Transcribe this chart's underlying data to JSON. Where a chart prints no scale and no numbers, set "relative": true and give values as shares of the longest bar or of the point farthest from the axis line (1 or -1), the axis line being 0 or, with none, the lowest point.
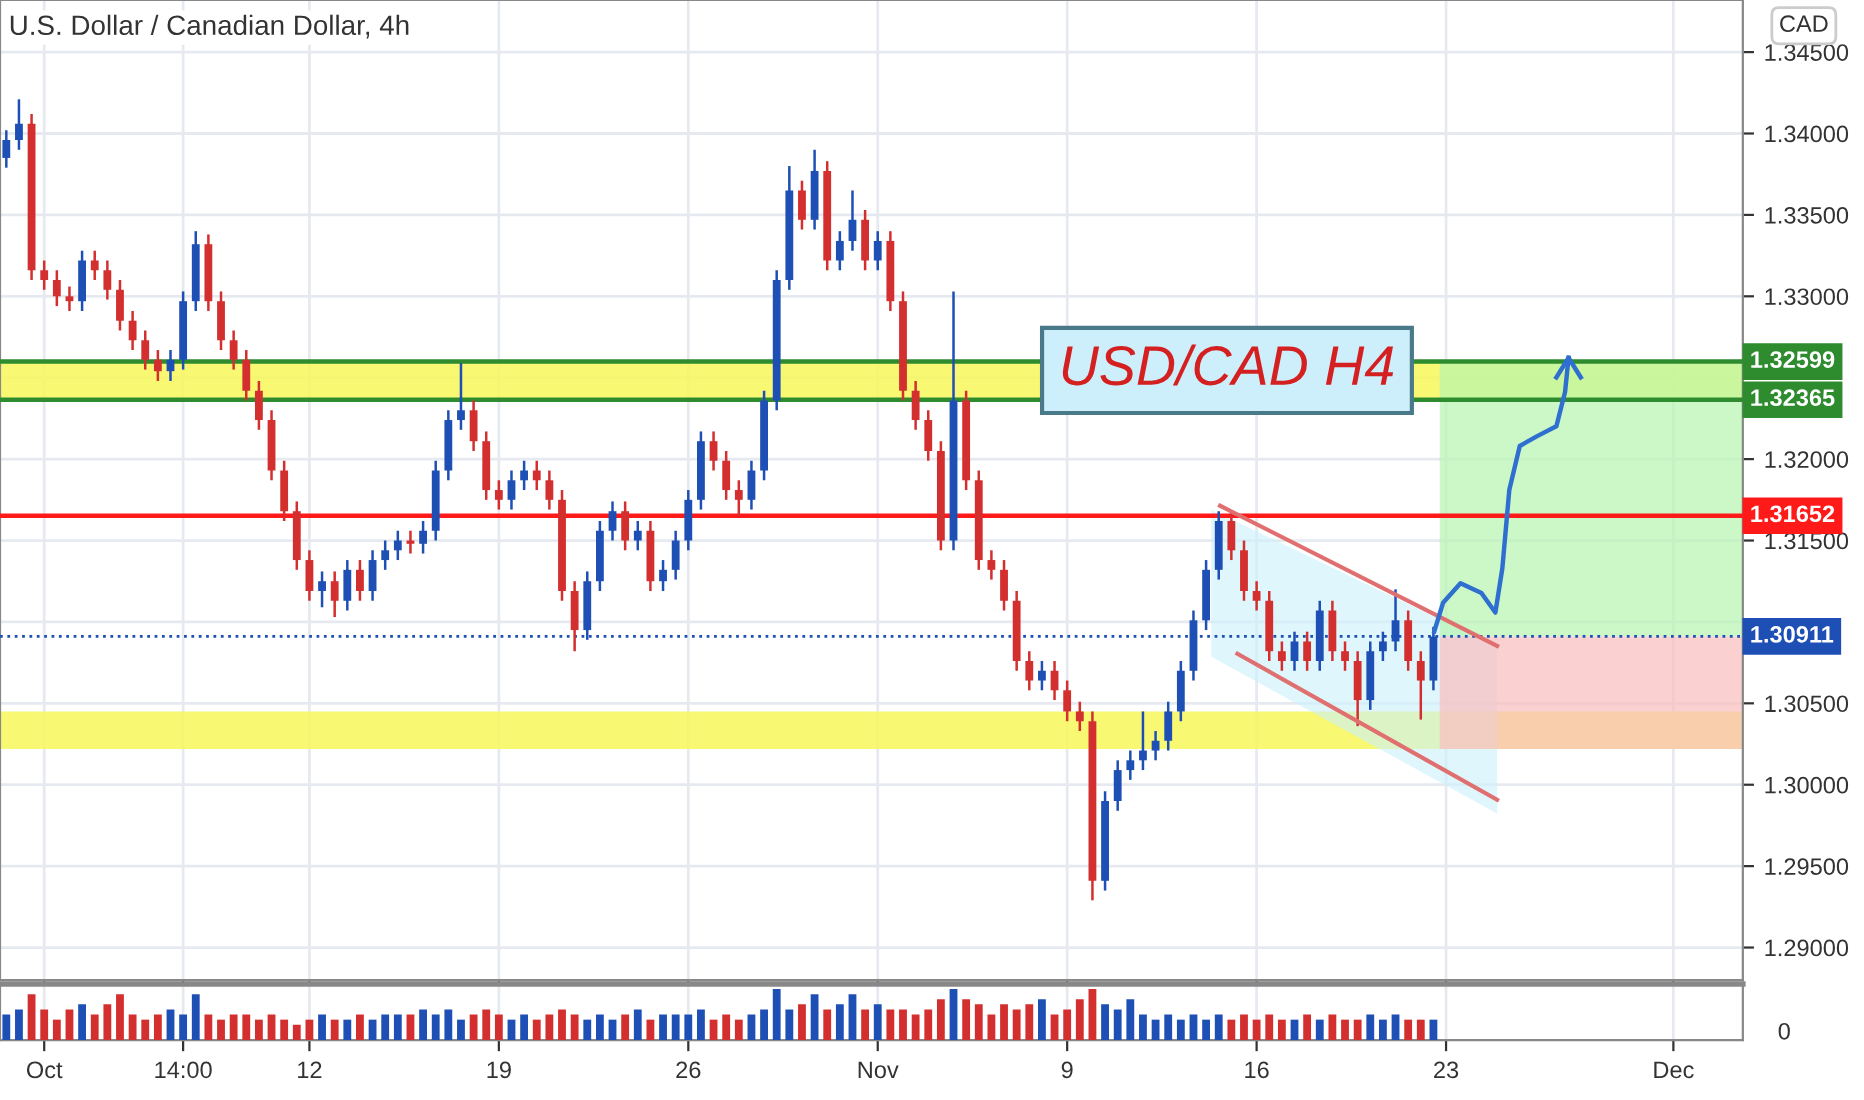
{
  "chart_data": [
    {
      "type": "candlestick",
      "title": "U.S. Dollar / Canadian Dollar, 4h",
      "categories": [
        null,
        null,
        null,
        null,
        null,
        null,
        null,
        null,
        null,
        null,
        null,
        null,
        null,
        null,
        null,
        null,
        null,
        null,
        null,
        null,
        null,
        null,
        null,
        null,
        null,
        null,
        null,
        null,
        null,
        null,
        null,
        null,
        null,
        null,
        null,
        null,
        null,
        null,
        null,
        null,
        null,
        null,
        null,
        null,
        null,
        null,
        null,
        null,
        null,
        null,
        null,
        null,
        null,
        null,
        null,
        null,
        null,
        null,
        null,
        null,
        null,
        null,
        null,
        null,
        null,
        null,
        null,
        null,
        null,
        null,
        null,
        null,
        null,
        null,
        null,
        null,
        null,
        null,
        null,
        null,
        null,
        null,
        null,
        null,
        null,
        null,
        null,
        null,
        null,
        null,
        null,
        null,
        null,
        null,
        null,
        null,
        null,
        null,
        null,
        null,
        null,
        null,
        null,
        null,
        null,
        null,
        null,
        null,
        null,
        null,
        null,
        null,
        null,
        null,
        null,
        null,
        null,
        null,
        null,
        null,
        null,
        null,
        null,
        null,
        null,
        null,
        null,
        null,
        null,
        null,
        null,
        null,
        null,
        null,
        null,
        null,
        null,
        null
      ],
      "ohlc": [
        [
          1.3385,
          1.3402,
          1.3379,
          1.3396
        ],
        [
          1.3396,
          1.3421,
          1.339,
          1.3406
        ],
        [
          1.3406,
          1.3412,
          1.331,
          1.3316
        ],
        [
          1.3316,
          1.3322,
          1.3304,
          1.331
        ],
        [
          1.331,
          1.3316,
          1.3294,
          1.33
        ],
        [
          1.33,
          1.3306,
          1.3291,
          1.3297
        ],
        [
          1.3297,
          1.3328,
          1.3291,
          1.3322
        ],
        [
          1.3322,
          1.3328,
          1.331,
          1.3316
        ],
        [
          1.3316,
          1.3322,
          1.3298,
          1.3304
        ],
        [
          1.3304,
          1.331,
          1.3279,
          1.3285
        ],
        [
          1.3285,
          1.3291,
          1.3267,
          1.3273
        ],
        [
          1.3273,
          1.3279,
          1.3255,
          1.3261
        ],
        [
          1.3261,
          1.3267,
          1.3248,
          1.3254
        ],
        [
          1.3254,
          1.3267,
          1.3248,
          1.3261
        ],
        [
          1.3261,
          1.3303,
          1.3255,
          1.3297
        ],
        [
          1.3297,
          1.334,
          1.3291,
          1.3332
        ],
        [
          1.3332,
          1.3338,
          1.3291,
          1.3297
        ],
        [
          1.3297,
          1.3303,
          1.3267,
          1.3273
        ],
        [
          1.3273,
          1.3279,
          1.3255,
          1.3261
        ],
        [
          1.3261,
          1.3267,
          1.3236,
          1.3242
        ],
        [
          1.3242,
          1.3248,
          1.3218,
          1.3224
        ],
        [
          1.3224,
          1.323,
          1.3187,
          1.3193
        ],
        [
          1.3193,
          1.3199,
          1.3162,
          1.3168
        ],
        [
          1.3168,
          1.3174,
          1.3132,
          1.3138
        ],
        [
          1.3138,
          1.3144,
          1.3113,
          1.3119
        ],
        [
          1.3119,
          1.3131,
          1.3109,
          1.3125
        ],
        [
          1.3125,
          1.3131,
          1.3103,
          1.3113
        ],
        [
          1.3113,
          1.3138,
          1.3107,
          1.3132
        ],
        [
          1.3132,
          1.3138,
          1.3113,
          1.3119
        ],
        [
          1.3119,
          1.3144,
          1.3113,
          1.3138
        ],
        [
          1.3138,
          1.315,
          1.3132,
          1.3144
        ],
        [
          1.3144,
          1.3156,
          1.3138,
          1.315
        ],
        [
          1.315,
          1.3156,
          1.3142,
          1.3148
        ],
        [
          1.3148,
          1.3162,
          1.3142,
          1.3156
        ],
        [
          1.3156,
          1.3199,
          1.315,
          1.3193
        ],
        [
          1.3193,
          1.323,
          1.3187,
          1.3224
        ],
        [
          1.3224,
          1.3259,
          1.3218,
          1.323
        ],
        [
          1.323,
          1.3236,
          1.3205,
          1.3211
        ],
        [
          1.3211,
          1.3217,
          1.3175,
          1.3181
        ],
        [
          1.3181,
          1.3187,
          1.3169,
          1.3175
        ],
        [
          1.3175,
          1.3193,
          1.3169,
          1.3187
        ],
        [
          1.3187,
          1.3199,
          1.3181,
          1.3193
        ],
        [
          1.3193,
          1.3199,
          1.3181,
          1.3187
        ],
        [
          1.3187,
          1.3193,
          1.3169,
          1.3175
        ],
        [
          1.3175,
          1.3181,
          1.3113,
          1.3119
        ],
        [
          1.3119,
          1.3125,
          1.3082,
          1.3095
        ],
        [
          1.3095,
          1.3131,
          1.3089,
          1.3125
        ],
        [
          1.3125,
          1.3162,
          1.3119,
          1.3156
        ],
        [
          1.3156,
          1.3174,
          1.315,
          1.3168
        ],
        [
          1.3168,
          1.3174,
          1.3144,
          1.315
        ],
        [
          1.315,
          1.3162,
          1.3144,
          1.3156
        ],
        [
          1.3156,
          1.3162,
          1.3119,
          1.3125
        ],
        [
          1.3125,
          1.3138,
          1.3119,
          1.3132
        ],
        [
          1.3132,
          1.3156,
          1.3126,
          1.315
        ],
        [
          1.315,
          1.3181,
          1.3144,
          1.3175
        ],
        [
          1.3175,
          1.3217,
          1.3169,
          1.3211
        ],
        [
          1.3211,
          1.3217,
          1.3193,
          1.3199
        ],
        [
          1.3199,
          1.3205,
          1.3175,
          1.3181
        ],
        [
          1.3181,
          1.3187,
          1.3165,
          1.3175
        ],
        [
          1.3175,
          1.3199,
          1.3169,
          1.3193
        ],
        [
          1.3193,
          1.3242,
          1.3187,
          1.3236
        ],
        [
          1.3236,
          1.3316,
          1.323,
          1.331
        ],
        [
          1.331,
          1.338,
          1.3304,
          1.3365
        ],
        [
          1.3365,
          1.3371,
          1.3341,
          1.3347
        ],
        [
          1.3347,
          1.339,
          1.3341,
          1.3377
        ],
        [
          1.3377,
          1.3383,
          1.3316,
          1.3322
        ],
        [
          1.3322,
          1.334,
          1.3316,
          1.3334
        ],
        [
          1.3334,
          1.3365,
          1.3328,
          1.3347
        ],
        [
          1.3347,
          1.3353,
          1.3316,
          1.3322
        ],
        [
          1.3322,
          1.334,
          1.3316,
          1.3334
        ],
        [
          1.3334,
          1.334,
          1.3291,
          1.3297
        ],
        [
          1.3297,
          1.3303,
          1.3236,
          1.3242
        ],
        [
          1.3242,
          1.3248,
          1.3218,
          1.3224
        ],
        [
          1.3224,
          1.323,
          1.3199,
          1.3205
        ],
        [
          1.3205,
          1.3211,
          1.3144,
          1.315
        ],
        [
          1.315,
          1.3303,
          1.3144,
          1.3236
        ],
        [
          1.3236,
          1.3242,
          1.3181,
          1.3187
        ],
        [
          1.3187,
          1.3193,
          1.3132,
          1.3138
        ],
        [
          1.3138,
          1.3144,
          1.3126,
          1.3132
        ],
        [
          1.3132,
          1.3138,
          1.3107,
          1.3113
        ],
        [
          1.3113,
          1.3119,
          1.307,
          1.3076
        ],
        [
          1.3076,
          1.3082,
          1.3058,
          1.3064
        ],
        [
          1.3064,
          1.3076,
          1.3058,
          1.307
        ],
        [
          1.307,
          1.3076,
          1.3052,
          1.3058
        ],
        [
          1.3058,
          1.3064,
          1.3039,
          1.3045
        ],
        [
          1.3045,
          1.3051,
          1.3033,
          1.3039
        ],
        [
          1.3039,
          1.3045,
          1.2929,
          1.2941
        ],
        [
          1.2941,
          1.2996,
          1.2935,
          1.299
        ],
        [
          1.299,
          1.3015,
          1.2984,
          1.3009
        ],
        [
          1.3009,
          1.3021,
          1.3003,
          1.3015
        ],
        [
          1.3015,
          1.3045,
          1.3009,
          1.3021
        ],
        [
          1.3021,
          1.3033,
          1.3015,
          1.3027
        ],
        [
          1.3027,
          1.3051,
          1.3021,
          1.3045
        ],
        [
          1.3045,
          1.3076,
          1.3039,
          1.307
        ],
        [
          1.307,
          1.3107,
          1.3064,
          1.3101
        ],
        [
          1.3101,
          1.3138,
          1.3095,
          1.3132
        ],
        [
          1.3132,
          1.3168,
          1.3126,
          1.3162
        ],
        [
          1.3162,
          1.3168,
          1.3138,
          1.3144
        ],
        [
          1.3144,
          1.315,
          1.3113,
          1.3119
        ],
        [
          1.3119,
          1.3125,
          1.3107,
          1.3113
        ],
        [
          1.3113,
          1.3119,
          1.3076,
          1.3082
        ],
        [
          1.3082,
          1.3088,
          1.307,
          1.3076
        ],
        [
          1.3076,
          1.3094,
          1.307,
          1.3088
        ],
        [
          1.3088,
          1.3094,
          1.307,
          1.3076
        ],
        [
          1.3076,
          1.3113,
          1.307,
          1.3107
        ],
        [
          1.3107,
          1.3113,
          1.3076,
          1.3082
        ],
        [
          1.3082,
          1.3088,
          1.307,
          1.3076
        ],
        [
          1.3076,
          1.3082,
          1.3036,
          1.3052
        ],
        [
          1.3052,
          1.3088,
          1.3046,
          1.3082
        ],
        [
          1.3082,
          1.3094,
          1.3076,
          1.3088
        ],
        [
          1.3088,
          1.312,
          1.3082,
          1.3101
        ],
        [
          1.3101,
          1.3107,
          1.307,
          1.3076
        ],
        [
          1.3076,
          1.3082,
          1.304,
          1.3064
        ],
        [
          1.3064,
          1.3097,
          1.3058,
          1.3091
        ],
        null,
        null,
        null,
        null,
        null,
        null,
        null,
        null,
        null,
        null,
        null,
        null,
        null,
        null,
        null,
        null,
        null,
        null,
        null,
        null,
        null,
        null,
        null,
        null
      ],
      "colors": [
        "#1e4fb4",
        "#1e4fb4",
        "#d32f2f",
        "#d32f2f",
        "#d32f2f",
        "#d32f2f",
        "#1e4fb4",
        "#d32f2f",
        "#d32f2f",
        "#d32f2f",
        "#d32f2f",
        "#d32f2f",
        "#d32f2f",
        "#1e4fb4",
        "#1e4fb4",
        "#1e4fb4",
        "#d32f2f",
        "#d32f2f",
        "#d32f2f",
        "#d32f2f",
        "#d32f2f",
        "#d32f2f",
        "#d32f2f",
        "#d32f2f",
        "#d32f2f",
        "#1e4fb4",
        "#d32f2f",
        "#1e4fb4",
        "#d32f2f",
        "#1e4fb4",
        "#1e4fb4",
        "#1e4fb4",
        "#d32f2f",
        "#1e4fb4",
        "#1e4fb4",
        "#1e4fb4",
        "#1e4fb4",
        "#d32f2f",
        "#d32f2f",
        "#d32f2f",
        "#1e4fb4",
        "#1e4fb4",
        "#d32f2f",
        "#d32f2f",
        "#d32f2f",
        "#d32f2f",
        "#1e4fb4",
        "#1e4fb4",
        "#1e4fb4",
        "#d32f2f",
        "#1e4fb4",
        "#d32f2f",
        "#1e4fb4",
        "#1e4fb4",
        "#1e4fb4",
        "#1e4fb4",
        "#d32f2f",
        "#d32f2f",
        "#d32f2f",
        "#1e4fb4",
        "#1e4fb4",
        "#1e4fb4",
        "#1e4fb4",
        "#d32f2f",
        "#1e4fb4",
        "#d32f2f",
        "#1e4fb4",
        "#1e4fb4",
        "#d32f2f",
        "#1e4fb4",
        "#d32f2f",
        "#d32f2f",
        "#d32f2f",
        "#d32f2f",
        "#d32f2f",
        "#1e4fb4",
        "#d32f2f",
        "#d32f2f",
        "#d32f2f",
        "#d32f2f",
        "#d32f2f",
        "#d32f2f",
        "#1e4fb4",
        "#d32f2f",
        "#d32f2f",
        "#d32f2f",
        "#d32f2f",
        "#1e4fb4",
        "#1e4fb4",
        "#1e4fb4",
        "#1e4fb4",
        "#1e4fb4",
        "#1e4fb4",
        "#1e4fb4",
        "#1e4fb4",
        "#1e4fb4",
        "#1e4fb4",
        "#d32f2f",
        "#d32f2f",
        "#d32f2f",
        "#d32f2f",
        "#d32f2f",
        "#1e4fb4",
        "#d32f2f",
        "#1e4fb4",
        "#d32f2f",
        "#d32f2f",
        "#d32f2f",
        "#1e4fb4",
        "#1e4fb4",
        "#1e4fb4",
        "#d32f2f",
        "#d32f2f",
        "#1e4fb4",
        null,
        null,
        null,
        null,
        null,
        null,
        null,
        null,
        null,
        null,
        null,
        null,
        null,
        null,
        null,
        null,
        null,
        null,
        null,
        null,
        null,
        null,
        null,
        null
      ],
      "ylim": [
        1.288,
        1.3482
      ],
      "yticks": [
        {
          "value": 1.29,
          "label": "1.29000"
        },
        {
          "value": 1.295,
          "label": "1.29500"
        },
        {
          "value": 1.3,
          "label": "1.30000"
        },
        {
          "value": 1.305,
          "label": "1.30500"
        },
        {
          "value": 1.31,
          "label": null
        },
        {
          "value": 1.315,
          "label": "1.31500"
        },
        {
          "value": 1.32,
          "label": "1.32000"
        },
        {
          "value": 1.325,
          "label": null
        },
        {
          "value": 1.33,
          "label": "1.33000"
        },
        {
          "value": 1.335,
          "label": "1.33500"
        },
        {
          "value": 1.34,
          "label": "1.34000"
        },
        {
          "value": 1.345,
          "label": "1.34500"
        }
      ],
      "ref_lines": [
        {
          "axis": "y",
          "value": 1.32599,
          "label": "1.32599",
          "color": "#2e8b2e",
          "line_style": "solid"
        },
        {
          "axis": "y",
          "value": 1.32365,
          "label": "1.32365",
          "color": "#2e8b2e",
          "line_style": "solid"
        },
        {
          "axis": "y",
          "value": 1.31652,
          "label": "1.31652",
          "color": "#ff1a1a",
          "line_style": "solid"
        },
        {
          "axis": "y",
          "value": 1.30911,
          "label": "1.30911",
          "color": "#1e4fb4",
          "line_style": "dotted"
        }
      ],
      "bands": [
        {
          "axis": "y",
          "from": 1.32365,
          "to": 1.32599,
          "color": "#f7f75a"
        },
        {
          "axis": "y",
          "from": 1.3022,
          "to": 1.3045,
          "color": "#f7f75a"
        }
      ],
      "annotations": [
        "CAD",
        "USD/CAD H4"
      ],
      "grid": true,
      "legend": false,
      "tick_labels": "y"
    },
    {
      "type": "bar",
      "relative": true,
      "categories": [
        null,
        null,
        null,
        "Oct",
        null,
        null,
        null,
        null,
        null,
        null,
        null,
        null,
        null,
        null,
        "14:00",
        null,
        null,
        null,
        null,
        null,
        null,
        null,
        null,
        null,
        "12",
        null,
        null,
        null,
        null,
        null,
        null,
        null,
        null,
        null,
        null,
        null,
        null,
        null,
        null,
        "19",
        null,
        null,
        null,
        null,
        null,
        null,
        null,
        null,
        null,
        null,
        null,
        null,
        null,
        null,
        "26",
        null,
        null,
        null,
        null,
        null,
        null,
        null,
        null,
        null,
        null,
        null,
        null,
        null,
        null,
        "Nov",
        null,
        null,
        null,
        null,
        null,
        null,
        null,
        null,
        null,
        null,
        null,
        null,
        null,
        null,
        "9",
        null,
        null,
        null,
        null,
        null,
        null,
        null,
        null,
        null,
        null,
        null,
        null,
        null,
        null,
        "16",
        null,
        null,
        null,
        null,
        null,
        null,
        null,
        null,
        null,
        null,
        null,
        null,
        null,
        null,
        "23",
        null,
        null,
        null,
        null,
        null,
        null,
        null,
        null,
        null,
        null,
        null,
        null,
        null,
        null,
        null,
        null,
        null,
        "Dec",
        null,
        null,
        null,
        null,
        null
      ],
      "values": [
        0.5,
        0.6,
        0.9,
        0.6,
        0.4,
        0.6,
        0.7,
        0.5,
        0.7,
        0.9,
        0.5,
        0.4,
        0.5,
        0.6,
        0.5,
        0.9,
        0.5,
        0.4,
        0.5,
        0.5,
        0.4,
        0.5,
        0.4,
        0.3,
        0.4,
        0.5,
        0.4,
        0.4,
        0.5,
        0.4,
        0.5,
        0.5,
        0.5,
        0.6,
        0.5,
        0.6,
        0.4,
        0.5,
        0.6,
        0.5,
        0.4,
        0.5,
        0.4,
        0.5,
        0.6,
        0.5,
        0.4,
        0.5,
        0.4,
        0.5,
        0.6,
        0.4,
        0.5,
        0.5,
        0.5,
        0.6,
        0.4,
        0.5,
        0.4,
        0.5,
        0.6,
        1.0,
        0.6,
        0.7,
        0.9,
        0.6,
        0.7,
        0.9,
        0.6,
        0.7,
        0.6,
        0.6,
        0.5,
        0.6,
        0.8,
        1.0,
        0.8,
        0.7,
        0.5,
        0.7,
        0.6,
        0.7,
        0.8,
        0.5,
        0.6,
        0.8,
        1.0,
        0.7,
        0.6,
        0.8,
        0.5,
        0.4,
        0.5,
        0.4,
        0.5,
        0.4,
        0.5,
        0.4,
        0.5,
        0.4,
        0.5,
        0.4,
        0.4,
        0.5,
        0.4,
        0.5,
        0.4,
        0.4,
        0.5,
        0.4,
        0.5,
        0.4,
        0.4,
        0.4,
        null,
        null,
        null,
        null,
        null,
        null,
        null,
        null,
        null,
        null,
        null,
        null,
        null,
        null,
        null,
        null,
        null,
        null,
        null,
        null,
        null,
        null,
        null,
        null
      ],
      "colors": [
        "#1e4fb4",
        "#1e4fb4",
        "#d32f2f",
        "#d32f2f",
        "#d32f2f",
        "#d32f2f",
        "#1e4fb4",
        "#d32f2f",
        "#d32f2f",
        "#d32f2f",
        "#d32f2f",
        "#d32f2f",
        "#d32f2f",
        "#1e4fb4",
        "#1e4fb4",
        "#1e4fb4",
        "#d32f2f",
        "#d32f2f",
        "#d32f2f",
        "#d32f2f",
        "#d32f2f",
        "#d32f2f",
        "#d32f2f",
        "#d32f2f",
        "#d32f2f",
        "#1e4fb4",
        "#d32f2f",
        "#1e4fb4",
        "#d32f2f",
        "#1e4fb4",
        "#1e4fb4",
        "#1e4fb4",
        "#d32f2f",
        "#1e4fb4",
        "#1e4fb4",
        "#1e4fb4",
        "#1e4fb4",
        "#d32f2f",
        "#d32f2f",
        "#d32f2f",
        "#1e4fb4",
        "#1e4fb4",
        "#d32f2f",
        "#d32f2f",
        "#d32f2f",
        "#d32f2f",
        "#1e4fb4",
        "#1e4fb4",
        "#1e4fb4",
        "#d32f2f",
        "#1e4fb4",
        "#d32f2f",
        "#1e4fb4",
        "#1e4fb4",
        "#1e4fb4",
        "#1e4fb4",
        "#d32f2f",
        "#d32f2f",
        "#d32f2f",
        "#1e4fb4",
        "#1e4fb4",
        "#1e4fb4",
        "#1e4fb4",
        "#d32f2f",
        "#1e4fb4",
        "#d32f2f",
        "#1e4fb4",
        "#1e4fb4",
        "#d32f2f",
        "#1e4fb4",
        "#d32f2f",
        "#d32f2f",
        "#d32f2f",
        "#d32f2f",
        "#d32f2f",
        "#1e4fb4",
        "#d32f2f",
        "#d32f2f",
        "#d32f2f",
        "#d32f2f",
        "#d32f2f",
        "#d32f2f",
        "#1e4fb4",
        "#d32f2f",
        "#d32f2f",
        "#d32f2f",
        "#d32f2f",
        "#1e4fb4",
        "#1e4fb4",
        "#1e4fb4",
        "#1e4fb4",
        "#1e4fb4",
        "#1e4fb4",
        "#1e4fb4",
        "#1e4fb4",
        "#1e4fb4",
        "#1e4fb4",
        "#d32f2f",
        "#d32f2f",
        "#d32f2f",
        "#d32f2f",
        "#d32f2f",
        "#1e4fb4",
        "#d32f2f",
        "#1e4fb4",
        "#d32f2f",
        "#d32f2f",
        "#d32f2f",
        "#1e4fb4",
        "#1e4fb4",
        "#1e4fb4",
        "#d32f2f",
        "#d32f2f",
        "#1e4fb4",
        null,
        null,
        null,
        null,
        null,
        null,
        null,
        null,
        null,
        null,
        null,
        null,
        null,
        null,
        null,
        null,
        null,
        null,
        null,
        null,
        null,
        null,
        null,
        null
      ],
      "annotations": [
        "0"
      ],
      "grid": "x",
      "legend": false,
      "tick_labels": "x"
    }
  ]
}
